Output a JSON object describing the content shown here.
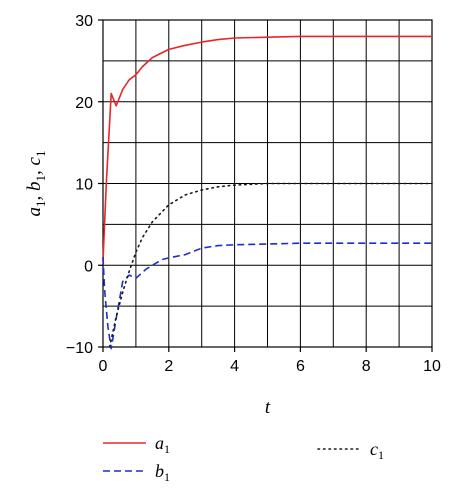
{
  "chart_data": {
    "type": "line",
    "xlabel": "t",
    "ylabel": "a1, b1, c1",
    "xlim": [
      0,
      10
    ],
    "ylim": [
      -10,
      30
    ],
    "grid": true,
    "legend_position": "bottom",
    "x_ticks": [
      "0",
      "2",
      "4",
      "6",
      "8",
      "10"
    ],
    "y_ticks": [
      "−10",
      "0",
      "10",
      "20",
      "30"
    ],
    "series": [
      {
        "name": "a1",
        "color": "#e8262a",
        "style": "solid",
        "x": [
          0,
          0.1,
          0.25,
          0.4,
          0.6,
          0.8,
          1.0,
          1.2,
          1.5,
          2.0,
          2.5,
          3.0,
          3.5,
          4.0,
          5.0,
          6.0,
          8.0,
          10.0
        ],
        "y": [
          0.5,
          10,
          21,
          19.5,
          21.5,
          22.7,
          23.3,
          24.3,
          25.4,
          26.4,
          26.9,
          27.3,
          27.6,
          27.8,
          27.9,
          28,
          28,
          28
        ]
      },
      {
        "name": "b1",
        "color": "#1c2fcc",
        "style": "dashed",
        "x": [
          0,
          0.05,
          0.15,
          0.25,
          0.4,
          0.6,
          0.8,
          1.0,
          1.3,
          1.5,
          1.8,
          2.0,
          2.5,
          3.0,
          3.5,
          4.0,
          5.0,
          6.0,
          8.0,
          10.0
        ],
        "y": [
          1,
          -3,
          -7.5,
          -10.2,
          -6.5,
          -2,
          -1.2,
          -1.6,
          -0.5,
          0,
          0.7,
          0.9,
          1.3,
          2.1,
          2.4,
          2.5,
          2.6,
          2.7,
          2.7,
          2.7
        ]
      },
      {
        "name": "c1",
        "color": "#1a1a1a",
        "style": "dotted",
        "x": [
          0.2,
          0.4,
          0.6,
          0.8,
          1.0,
          1.2,
          1.5,
          2.0,
          2.5,
          3.0,
          3.5,
          4.0,
          4.5,
          5.0,
          6.0,
          8.0,
          10.0
        ],
        "y": [
          -10,
          -6.3,
          -3.3,
          -0.7,
          1.6,
          3.4,
          5.3,
          7.4,
          8.6,
          9.2,
          9.6,
          9.8,
          9.9,
          10,
          10,
          10,
          10
        ]
      }
    ]
  }
}
